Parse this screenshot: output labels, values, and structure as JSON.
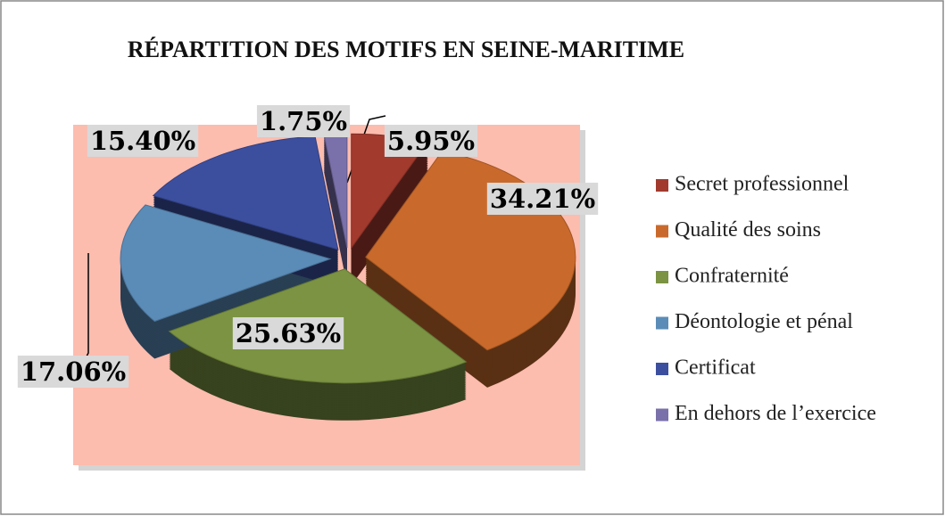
{
  "chart_data": {
    "type": "pie",
    "title": "RÉPARTITION DES MOTIFS EN SEINE-MARITIME",
    "categories": [
      "Secret professionnel",
      "Qualité des soins",
      "Confraternité",
      "Déontologie et pénal",
      "Certificat",
      "En dehors de l’exercice"
    ],
    "values": [
      5.95,
      34.21,
      25.63,
      17.06,
      15.4,
      1.75
    ],
    "value_labels": [
      "5.95%",
      "34.21%",
      "25.63%",
      "17.06%",
      "15.40%",
      "1.75%"
    ],
    "colors": [
      "#a23a2e",
      "#c96a2c",
      "#7b9342",
      "#5b8cb8",
      "#3c4f9f",
      "#7a70aa"
    ],
    "legend": "right"
  }
}
